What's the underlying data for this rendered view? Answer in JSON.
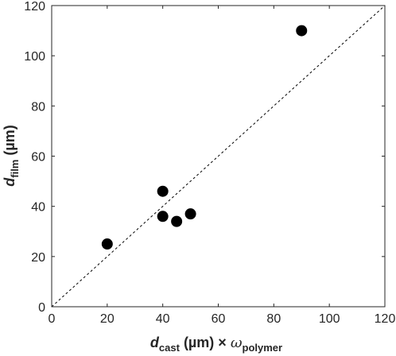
{
  "chart_data": {
    "type": "scatter",
    "xlim": [
      0,
      120
    ],
    "ylim": [
      0,
      120
    ],
    "x_ticks": [
      0,
      20,
      40,
      60,
      80,
      100,
      120
    ],
    "y_ticks": [
      0,
      20,
      40,
      60,
      80,
      100,
      120
    ],
    "xlabel": {
      "main": "d",
      "main_sub": "cast",
      "middle": " (µm) × ",
      "factor": "ω",
      "factor_sub": "polymer"
    },
    "ylabel": {
      "main": "d",
      "main_sub": "film",
      "unit": " (µm)"
    },
    "series": [
      {
        "points": [
          {
            "x": 20,
            "y": 25
          },
          {
            "x": 40,
            "y": 46
          },
          {
            "x": 40,
            "y": 36
          },
          {
            "x": 45,
            "y": 34
          },
          {
            "x": 50,
            "y": 37
          },
          {
            "x": 90,
            "y": 110
          }
        ],
        "color": "#000000"
      }
    ],
    "reference_line": {
      "from": [
        0,
        0
      ],
      "to": [
        120,
        120
      ],
      "style": "dashed",
      "color": "#000000"
    },
    "grid": false,
    "legend": "none"
  }
}
